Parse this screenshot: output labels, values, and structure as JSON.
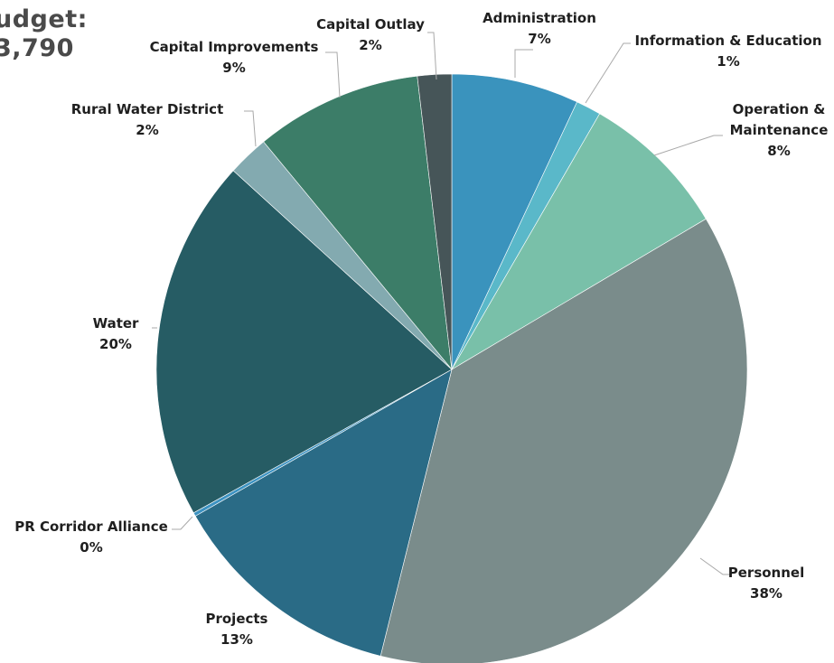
{
  "chart_data": {
    "type": "pie",
    "title_lines": [
      "udget:",
      "3,790"
    ],
    "start_angle_deg": 0,
    "direction": "clockwise",
    "slices": [
      {
        "label": "Administration",
        "label_lines": [
          "Administration"
        ],
        "pct_label": "7%",
        "value": 7.1,
        "color": "#3a93bd"
      },
      {
        "label": "Information & Education",
        "label_lines": [
          "Information & Education"
        ],
        "pct_label": "1%",
        "value": 1.4,
        "color": "#5ab8c9"
      },
      {
        "label": "Operation & Maintenance",
        "label_lines": [
          "Operation &",
          "Maintenance"
        ],
        "pct_label": "8%",
        "value": 8.3,
        "color": "#79c0a9"
      },
      {
        "label": "Personnel",
        "label_lines": [
          "Personnel"
        ],
        "pct_label": "38%",
        "value": 38.1,
        "color": "#7a8c8b"
      },
      {
        "label": "Projects",
        "label_lines": [
          "Projects"
        ],
        "pct_label": "13%",
        "value": 13.1,
        "color": "#2a6b86"
      },
      {
        "label": "PR Corridor Alliance",
        "label_lines": [
          "PR Corridor Alliance"
        ],
        "pct_label": "0%",
        "value": 0.2,
        "color": "#3d93c2"
      },
      {
        "label": "Water",
        "label_lines": [
          "Water"
        ],
        "pct_label": "20%",
        "value": 20.2,
        "color": "#265c64"
      },
      {
        "label": "Rural Water District",
        "label_lines": [
          "Rural Water District"
        ],
        "pct_label": "2%",
        "value": 2.3,
        "color": "#83aab0"
      },
      {
        "label": "Capital Improvements",
        "label_lines": [
          "Capital Improvements"
        ],
        "pct_label": "9%",
        "value": 9.3,
        "color": "#3c7d68"
      },
      {
        "label": "Capital Outlay",
        "label_lines": [
          "Capital Outlay"
        ],
        "pct_label": "2%",
        "value": 1.9,
        "color": "#465558"
      }
    ]
  }
}
